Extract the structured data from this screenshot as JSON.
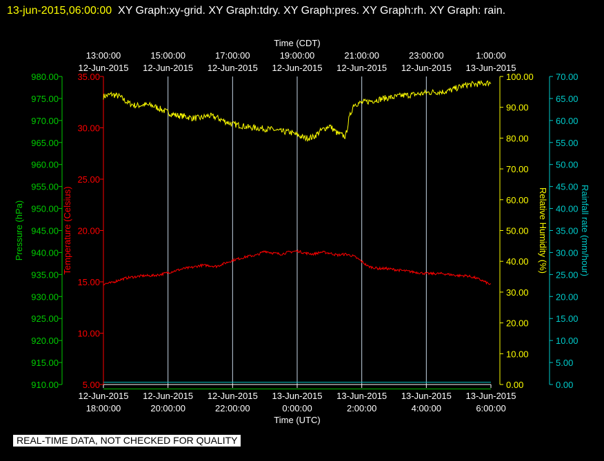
{
  "header": {
    "timestamp": "13-jun-2015,06:00:00",
    "graphs": "XY Graph:xy-grid.  XY Graph:tdry.  XY Graph:pres.  XY Graph:rh.  XY Graph: rain."
  },
  "disclaimer": "REAL-TIME DATA, NOT CHECKED FOR QUALITY",
  "colors": {
    "background": "#000000",
    "grid": "#c8d8e8",
    "pressure": "#00cc00",
    "temperature": "#ff0000",
    "humidity": "#ffff00",
    "rainfall": "#00cccc"
  },
  "chart_data": {
    "type": "line",
    "grid": true,
    "xlabel_top": "Time (CDT)",
    "xlabel_bottom": "Time (UTC)",
    "x_hours_range": [
      0,
      12
    ],
    "x_ticks_bottom": [
      {
        "l1": "12-Jun-2015",
        "l2": "18:00:00"
      },
      {
        "l1": "12-Jun-2015",
        "l2": "20:00:00"
      },
      {
        "l1": "12-Jun-2015",
        "l2": "22:00:00"
      },
      {
        "l1": "13-Jun-2015",
        "l2": "0:00:00"
      },
      {
        "l1": "13-Jun-2015",
        "l2": "2:00:00"
      },
      {
        "l1": "13-Jun-2015",
        "l2": "4:00:00"
      },
      {
        "l1": "13-Jun-2015",
        "l2": "6:00:00"
      }
    ],
    "x_ticks_top": [
      {
        "l1": "13:00:00",
        "l2": "12-Jun-2015"
      },
      {
        "l1": "15:00:00",
        "l2": "12-Jun-2015"
      },
      {
        "l1": "17:00:00",
        "l2": "12-Jun-2015"
      },
      {
        "l1": "19:00:00",
        "l2": "12-Jun-2015"
      },
      {
        "l1": "21:00:00",
        "l2": "12-Jun-2015"
      },
      {
        "l1": "23:00:00",
        "l2": "12-Jun-2015"
      },
      {
        "l1": "1:00:00",
        "l2": "13-Jun-2015"
      }
    ],
    "axes": {
      "pressure": {
        "label": "Pressure (hPa)",
        "range": [
          910,
          980
        ],
        "ticks": [
          "910.00",
          "915.00",
          "920.00",
          "925.00",
          "930.00",
          "935.00",
          "940.00",
          "945.00",
          "950.00",
          "955.00",
          "960.00",
          "965.00",
          "970.00",
          "975.00",
          "980.00"
        ]
      },
      "temperature": {
        "label": "Temperature (Celsius)",
        "range": [
          5,
          35
        ],
        "ticks": [
          "5.00",
          "10.00",
          "15.00",
          "20.00",
          "25.00",
          "30.00",
          "35.00"
        ]
      },
      "humidity": {
        "label": "Relative Humidity (%)",
        "range": [
          0,
          100
        ],
        "ticks": [
          "0.00",
          "10.00",
          "20.00",
          "30.00",
          "40.00",
          "50.00",
          "60.00",
          "70.00",
          "80.00",
          "90.00",
          "100.00"
        ]
      },
      "rainfall": {
        "label": "Rainfall rate (mm/hour)",
        "range": [
          0,
          70
        ],
        "ticks": [
          "0.00",
          "5.00",
          "10.00",
          "15.00",
          "20.00",
          "25.00",
          "30.00",
          "35.00",
          "40.00",
          "45.00",
          "50.00",
          "55.00",
          "60.00",
          "65.00",
          "70.00"
        ]
      }
    },
    "series": [
      {
        "name": "Relative Humidity (%)",
        "axis": "humidity",
        "x": [
          0,
          0.25,
          0.5,
          0.75,
          1.0,
          1.25,
          1.5,
          1.75,
          2.0,
          2.25,
          2.5,
          2.75,
          3.0,
          3.25,
          3.5,
          3.75,
          4.0,
          4.25,
          4.5,
          4.75,
          5.0,
          5.25,
          5.5,
          5.75,
          6.0,
          6.25,
          6.5,
          6.75,
          7.0,
          7.25,
          7.5,
          7.6,
          7.75,
          7.85,
          8.0,
          8.25,
          8.5,
          8.75,
          9.0,
          9.25,
          9.5,
          9.75,
          10.0,
          10.25,
          10.5,
          10.75,
          11.0,
          11.25,
          11.5,
          11.75,
          12.0
        ],
        "y": [
          93.5,
          94.2,
          93.5,
          91.5,
          90.5,
          90.8,
          90.6,
          89.5,
          88.3,
          87.4,
          87.1,
          86.5,
          86.5,
          87.3,
          86.7,
          85.5,
          84.5,
          84.1,
          83.5,
          83.3,
          83.0,
          82.8,
          82.1,
          82.0,
          81.0,
          80.0,
          80.3,
          82.5,
          84.0,
          81.5,
          80.5,
          86.0,
          91.0,
          91.2,
          91.5,
          92.0,
          92.5,
          93.0,
          93.3,
          93.8,
          94.0,
          94.3,
          94.7,
          95.0,
          95.0,
          95.5,
          96.5,
          97.3,
          97.5,
          97.7,
          98.0
        ]
      },
      {
        "name": "Temperature (Celsius)",
        "axis": "temperature",
        "x": [
          0,
          0.25,
          0.5,
          0.75,
          1.0,
          1.25,
          1.5,
          1.75,
          2.0,
          2.25,
          2.5,
          2.75,
          3.0,
          3.25,
          3.5,
          3.75,
          4.0,
          4.25,
          4.5,
          4.75,
          5.0,
          5.25,
          5.5,
          5.75,
          6.0,
          6.25,
          6.5,
          6.75,
          7.0,
          7.25,
          7.5,
          7.75,
          7.95,
          8.2,
          8.5,
          8.75,
          9.0,
          9.25,
          9.5,
          9.75,
          10.0,
          10.25,
          10.5,
          10.75,
          11.0,
          11.25,
          11.5,
          11.75,
          12.0
        ],
        "y": [
          14.8,
          14.9,
          15.2,
          15.4,
          15.5,
          15.6,
          15.6,
          15.7,
          15.9,
          16.1,
          16.3,
          16.4,
          16.6,
          16.6,
          16.5,
          16.8,
          17.1,
          17.3,
          17.5,
          17.6,
          18.0,
          17.8,
          17.7,
          17.9,
          18.0,
          17.8,
          17.7,
          17.9,
          17.8,
          17.6,
          17.7,
          17.5,
          17.1,
          16.5,
          16.3,
          16.3,
          16.2,
          16.1,
          16.0,
          15.9,
          15.8,
          15.8,
          15.8,
          15.7,
          15.6,
          15.6,
          15.4,
          15.1,
          14.7
        ]
      },
      {
        "name": "Pressure (hPa)",
        "axis": "pressure",
        "x": [
          0,
          12
        ],
        "y": [
          909,
          909
        ]
      },
      {
        "name": "Rainfall rate (mm/hour)",
        "axis": "rainfall",
        "x": [
          0,
          12
        ],
        "y": [
          0.5,
          0.5
        ]
      }
    ]
  }
}
